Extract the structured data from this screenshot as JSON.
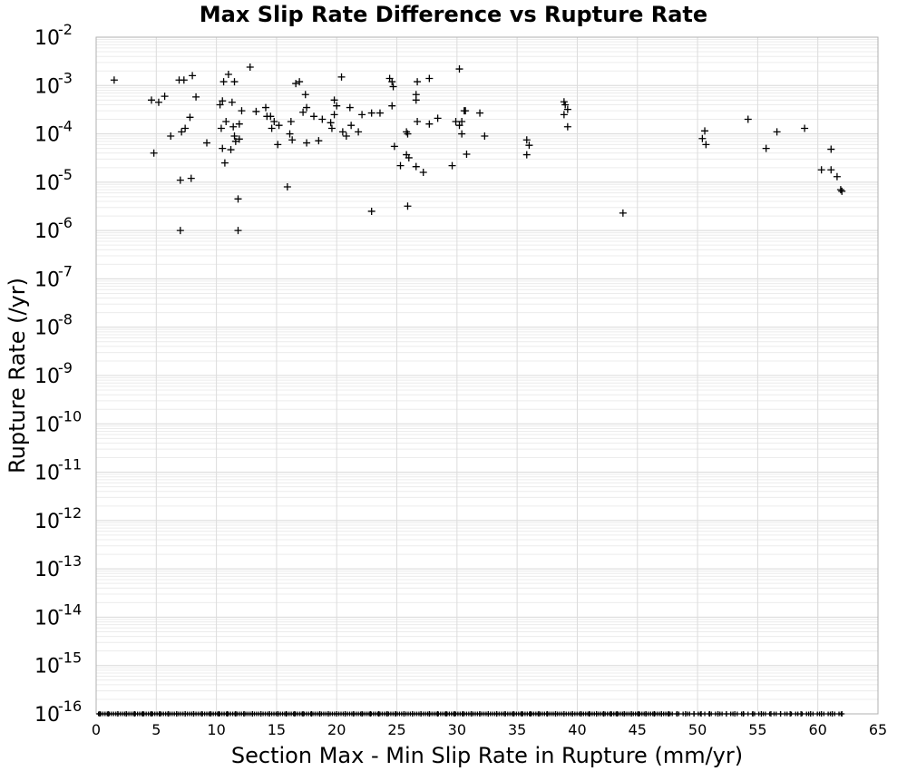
{
  "chart_data": {
    "type": "scatter",
    "title": "Max Slip Rate Difference vs Rupture Rate",
    "xlabel": "Section Max - Min Slip Rate in Rupture (mm/yr)",
    "ylabel": "Rupture Rate (/yr)",
    "xlim": [
      0,
      65
    ],
    "ylim": [
      1e-16,
      0.01
    ],
    "y_scale": "log",
    "grid": true,
    "legend": "none",
    "marker": "plus",
    "x_ticks": [
      "0",
      "5",
      "10",
      "15",
      "20",
      "25",
      "30",
      "35",
      "40",
      "45",
      "50",
      "55",
      "60",
      "65"
    ],
    "y_ticks": [
      {
        "base": "10",
        "exp": "-2"
      },
      {
        "base": "10",
        "exp": "-3"
      },
      {
        "base": "10",
        "exp": "-4"
      },
      {
        "base": "10",
        "exp": "-5"
      },
      {
        "base": "10",
        "exp": "-6"
      },
      {
        "base": "10",
        "exp": "-7"
      },
      {
        "base": "10",
        "exp": "-8"
      },
      {
        "base": "10",
        "exp": "-9"
      },
      {
        "base": "10",
        "exp": "-10"
      },
      {
        "base": "10",
        "exp": "-11"
      },
      {
        "base": "10",
        "exp": "-12"
      },
      {
        "base": "10",
        "exp": "-13"
      },
      {
        "base": "10",
        "exp": "-14"
      },
      {
        "base": "10",
        "exp": "-15"
      },
      {
        "base": "10",
        "exp": "-16"
      }
    ],
    "points": [
      [
        1.5,
        0.0013
      ],
      [
        4.6,
        0.0005
      ],
      [
        5.2,
        0.00045
      ],
      [
        5.7,
        0.0006
      ],
      [
        4.8,
        4e-05
      ],
      [
        6.2,
        9e-05
      ],
      [
        6.9,
        0.0013
      ],
      [
        7.3,
        0.0013
      ],
      [
        7.8,
        0.00022
      ],
      [
        7.4,
        0.00013
      ],
      [
        7.1,
        0.00011
      ],
      [
        8.0,
        0.0016
      ],
      [
        8.3,
        0.00058
      ],
      [
        7.0,
        1.1e-05
      ],
      [
        7.9,
        1.2e-05
      ],
      [
        7.0,
        1e-06
      ],
      [
        9.2,
        6.5e-05
      ],
      [
        10.3,
        0.0004
      ],
      [
        10.5,
        0.00048
      ],
      [
        10.6,
        0.0012
      ],
      [
        10.4,
        0.00013
      ],
      [
        10.8,
        0.00018
      ],
      [
        10.5,
        5e-05
      ],
      [
        10.7,
        2.5e-05
      ],
      [
        11.0,
        0.0017
      ],
      [
        11.3,
        0.00045
      ],
      [
        11.5,
        0.0012
      ],
      [
        11.2,
        4.7e-05
      ],
      [
        11.4,
        0.00014
      ],
      [
        11.5,
        9e-05
      ],
      [
        11.6,
        7e-05
      ],
      [
        11.9,
        7.8e-05
      ],
      [
        11.9,
        0.00016
      ],
      [
        12.1,
        0.0003
      ],
      [
        11.8,
        4.5e-06
      ],
      [
        11.8,
        1e-06
      ],
      [
        12.8,
        0.0024
      ],
      [
        13.3,
        0.00029
      ],
      [
        14.1,
        0.00035
      ],
      [
        14.2,
        0.00023
      ],
      [
        14.5,
        0.00023
      ],
      [
        14.8,
        0.00018
      ],
      [
        14.6,
        0.00013
      ],
      [
        15.2,
        0.00015
      ],
      [
        15.1,
        6e-05
      ],
      [
        15.9,
        8e-06
      ],
      [
        16.1,
        0.0001
      ],
      [
        16.3,
        7.5e-05
      ],
      [
        16.2,
        0.00018
      ],
      [
        16.6,
        0.0011
      ],
      [
        16.9,
        0.0012
      ],
      [
        17.2,
        0.00028
      ],
      [
        17.5,
        0.00035
      ],
      [
        17.4,
        0.00065
      ],
      [
        17.5,
        6.5e-05
      ],
      [
        18.1,
        0.00023
      ],
      [
        18.5,
        7.2e-05
      ],
      [
        18.8,
        0.0002
      ],
      [
        19.6,
        0.00013
      ],
      [
        19.8,
        0.0005
      ],
      [
        19.5,
        0.00017
      ],
      [
        19.8,
        0.00025
      ],
      [
        20.0,
        0.00038
      ],
      [
        20.4,
        0.0015
      ],
      [
        20.5,
        0.00011
      ],
      [
        20.8,
        9e-05
      ],
      [
        21.1,
        0.00035
      ],
      [
        21.2,
        0.00015
      ],
      [
        21.8,
        0.00011
      ],
      [
        22.1,
        0.00025
      ],
      [
        22.9,
        0.00027
      ],
      [
        22.9,
        2.5e-06
      ],
      [
        23.6,
        0.00027
      ],
      [
        24.4,
        0.0014
      ],
      [
        24.6,
        0.0012
      ],
      [
        24.7,
        0.00095
      ],
      [
        24.6,
        0.00038
      ],
      [
        24.8,
        5.5e-05
      ],
      [
        25.3,
        2.2e-05
      ],
      [
        25.8,
        0.00011
      ],
      [
        25.9,
        0.0001
      ],
      [
        25.8,
        3.7e-05
      ],
      [
        26.0,
        3.2e-05
      ],
      [
        25.9,
        3.2e-06
      ],
      [
        26.6,
        0.00065
      ],
      [
        26.6,
        0.0005
      ],
      [
        26.7,
        0.0012
      ],
      [
        26.7,
        0.00018
      ],
      [
        26.6,
        2.1e-05
      ],
      [
        27.2,
        1.6e-05
      ],
      [
        27.7,
        0.0014
      ],
      [
        27.7,
        0.00016
      ],
      [
        28.4,
        0.00021
      ],
      [
        29.6,
        2.2e-05
      ],
      [
        30.2,
        0.0022
      ],
      [
        29.9,
        0.00018
      ],
      [
        30.2,
        0.00015
      ],
      [
        30.4,
        0.00018
      ],
      [
        30.6,
        0.0003
      ],
      [
        30.7,
        0.0003
      ],
      [
        30.4,
        0.0001
      ],
      [
        30.8,
        3.8e-05
      ],
      [
        31.9,
        0.00027
      ],
      [
        32.3,
        9e-05
      ],
      [
        35.8,
        7.5e-05
      ],
      [
        36.0,
        5.8e-05
      ],
      [
        35.8,
        3.7e-05
      ],
      [
        38.9,
        0.00046
      ],
      [
        39.0,
        0.0004
      ],
      [
        39.2,
        0.00032
      ],
      [
        38.9,
        0.00025
      ],
      [
        39.2,
        0.00014
      ],
      [
        43.8,
        2.3e-06
      ],
      [
        50.4,
        8e-05
      ],
      [
        50.6,
        0.000115
      ],
      [
        50.7,
        6e-05
      ],
      [
        54.2,
        0.0002
      ],
      [
        55.7,
        5e-05
      ],
      [
        56.6,
        0.00011
      ],
      [
        58.9,
        0.00013
      ],
      [
        60.3,
        1.8e-05
      ],
      [
        61.1,
        1.8e-05
      ],
      [
        61.1,
        4.8e-05
      ],
      [
        61.6,
        1.3e-05
      ],
      [
        61.9,
        7e-06
      ],
      [
        62.0,
        6.5e-06
      ]
    ],
    "floor_points": {
      "y": 1e-16,
      "x": [
        0.3,
        1.0,
        1.8,
        2.5,
        3.2,
        3.9,
        4.6,
        5.3,
        6.0,
        6.7,
        7.4,
        8.1,
        8.8,
        9.5,
        10.2,
        10.9,
        11.6,
        12.3,
        13.0,
        13.7,
        14.4,
        15.1,
        15.8,
        16.5,
        17.2,
        17.9,
        18.6,
        19.3,
        20.0,
        20.7,
        21.4,
        22.1,
        22.8,
        23.5,
        24.2,
        24.9,
        25.6,
        26.3,
        27.0,
        27.7,
        28.4,
        29.1,
        29.8,
        30.5,
        31.2,
        31.9,
        32.6,
        33.3,
        34.0,
        34.7,
        35.4,
        36.1,
        36.8,
        37.5,
        38.2,
        38.9,
        39.6,
        40.3,
        41.0,
        41.6,
        42.2,
        42.8,
        43.3,
        43.9,
        44.5,
        45.1,
        45.7,
        46.4,
        47.0,
        47.6,
        48.3,
        49.0,
        49.7,
        50.3,
        51.0,
        51.7,
        52.4,
        53.1,
        53.8,
        54.6,
        55.3,
        56.1,
        56.9,
        57.7,
        58.6,
        59.4,
        60.3,
        61.2,
        62.0
      ]
    }
  }
}
